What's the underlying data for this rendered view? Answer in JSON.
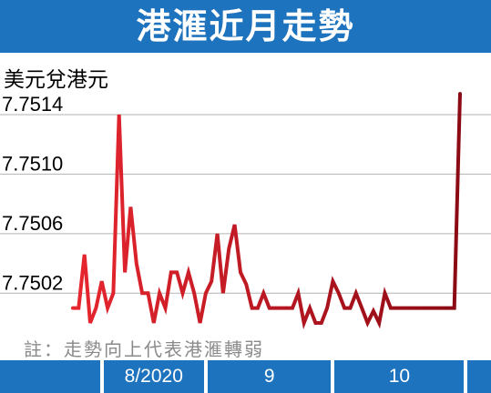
{
  "header": {
    "title": "港滙近月走勢"
  },
  "note": "註：走勢向上代表港滙轉弱",
  "chart_data": {
    "type": "line",
    "title": "港滙近月走勢",
    "ylabel": "美元兌港元",
    "ylim": [
      7.74995,
      7.75165
    ],
    "yticks": [
      7.7514,
      7.751,
      7.7506,
      7.7502
    ],
    "ytick_labels": [
      "7.7514",
      "7.7510",
      "7.7506",
      "7.7502"
    ],
    "xticks": [
      {
        "label": "8/2020",
        "start_index": 5,
        "end_index": 23
      },
      {
        "label": "9",
        "start_index": 23,
        "end_index": 45
      },
      {
        "label": "10",
        "start_index": 45,
        "end_index": 68
      }
    ],
    "grid": true,
    "line_color_start": "#e8262f",
    "line_color_end": "#8b0a14",
    "values": [
      7.7501,
      7.7501,
      7.75046,
      7.75,
      7.7501,
      7.75028,
      7.7501,
      7.7502,
      7.7514,
      7.75034,
      7.75078,
      7.7504,
      7.7502,
      7.7502,
      7.75,
      7.7502,
      7.7501,
      7.75034,
      7.75034,
      7.7502,
      7.75034,
      7.7502,
      7.75,
      7.7502,
      7.75028,
      7.7506,
      7.7502,
      7.7505,
      7.75066,
      7.75034,
      7.75026,
      7.7501,
      7.7501,
      7.7502,
      7.7501,
      7.7501,
      7.7501,
      7.7501,
      7.7501,
      7.7502,
      7.75,
      7.7501,
      7.75,
      7.75,
      7.7501,
      7.75028,
      7.7502,
      7.7501,
      7.7501,
      7.7502,
      7.7501,
      7.75,
      7.75008,
      7.75,
      7.7502,
      7.7501,
      7.7501,
      7.7501,
      7.7501,
      7.7501,
      7.7501,
      7.7501,
      7.7501,
      7.7501,
      7.7501,
      7.7501,
      7.7501,
      7.75154
    ]
  }
}
